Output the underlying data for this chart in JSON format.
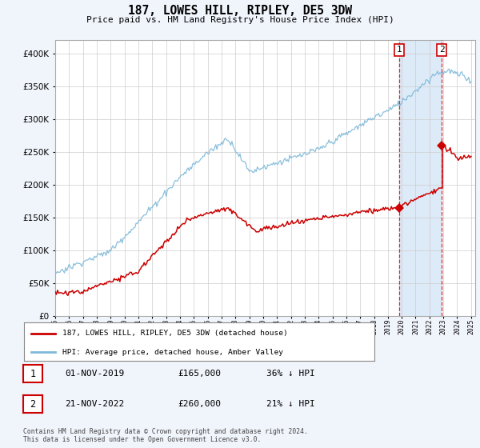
{
  "title": "187, LOWES HILL, RIPLEY, DE5 3DW",
  "subtitle": "Price paid vs. HM Land Registry's House Price Index (HPI)",
  "ytick_values": [
    0,
    50000,
    100000,
    150000,
    200000,
    250000,
    300000,
    350000,
    400000
  ],
  "ylim": [
    0,
    420000
  ],
  "hpi_color": "#7db8d8",
  "price_color": "#cc0000",
  "sale1_price": 165000,
  "sale1_price_label": "£165,000",
  "sale1_hpi_label": "36% ↓ HPI",
  "sale1_date_label": "01-NOV-2019",
  "sale1_year": 2019.83,
  "sale2_price": 260000,
  "sale2_price_label": "£260,000",
  "sale2_hpi_label": "21% ↓ HPI",
  "sale2_date_label": "21-NOV-2022",
  "sale2_year": 2022.89,
  "legend_label1": "187, LOWES HILL, RIPLEY, DE5 3DW (detached house)",
  "legend_label2": "HPI: Average price, detached house, Amber Valley",
  "footnote": "Contains HM Land Registry data © Crown copyright and database right 2024.\nThis data is licensed under the Open Government Licence v3.0.",
  "background_color": "#f0f4fb",
  "plot_bg_color": "#ffffff",
  "shaded_region_color": "#ddeaf8"
}
